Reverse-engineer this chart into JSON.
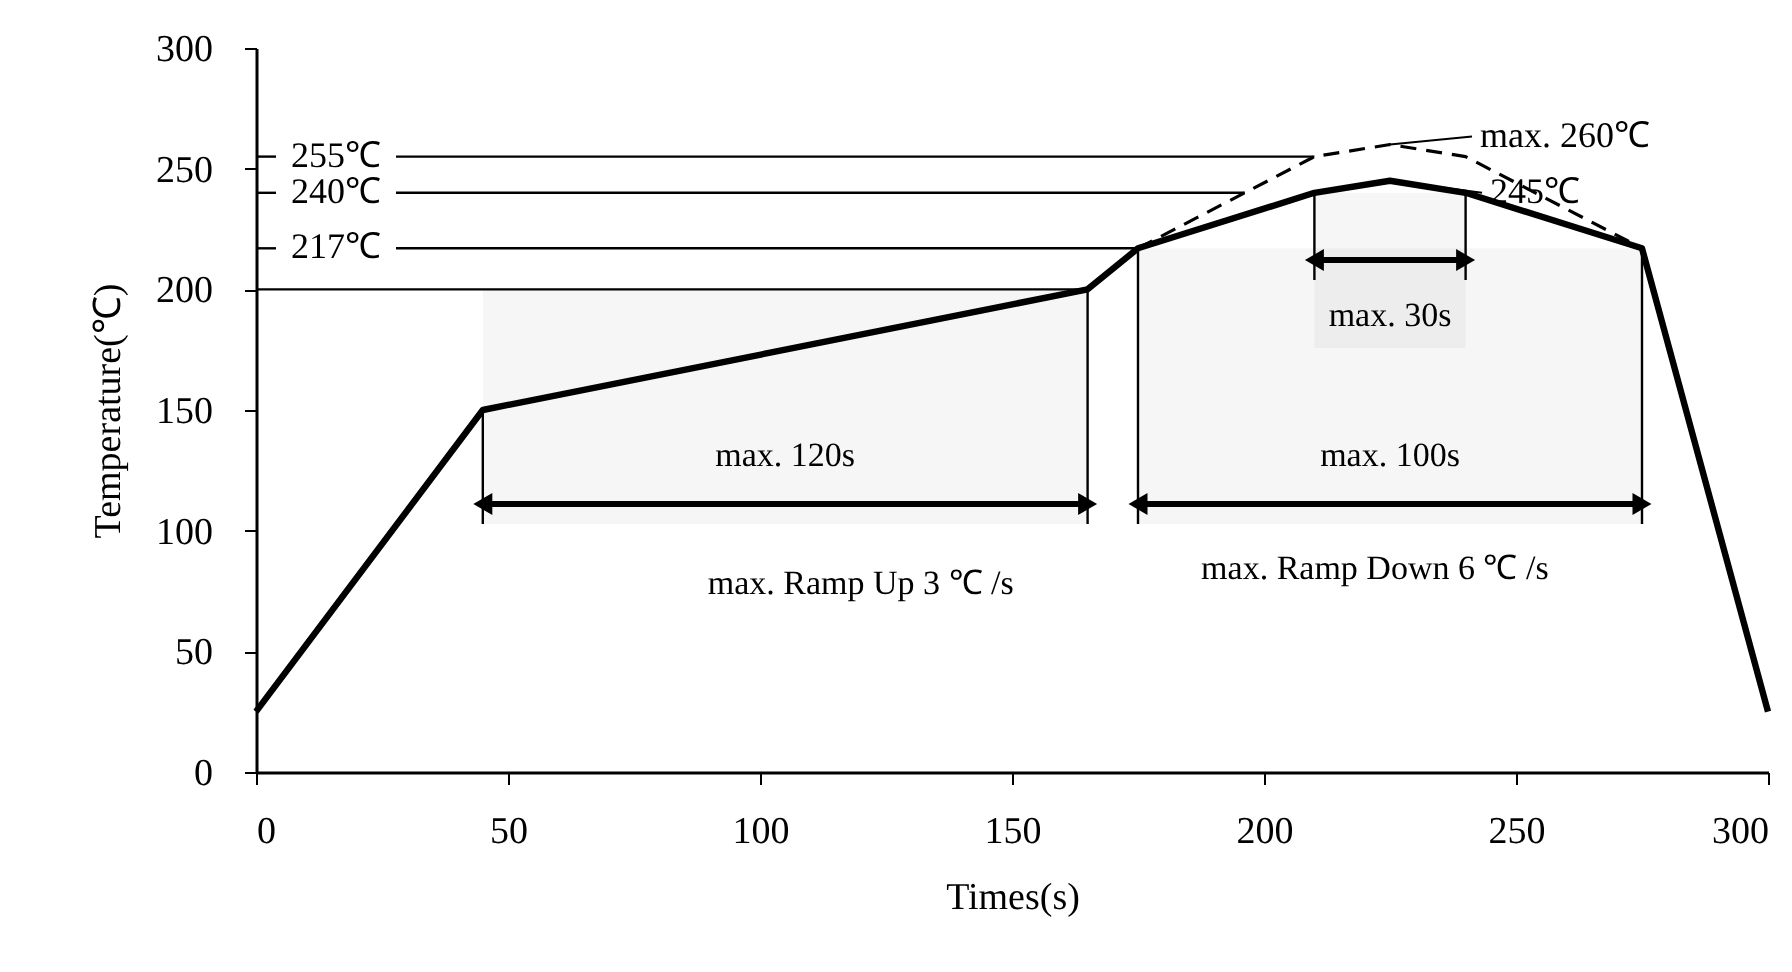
{
  "chart_data": {
    "type": "line",
    "xlabel": "Times(s)",
    "ylabel": "Temperature(℃)",
    "series": [
      {
        "color": "#000000",
        "line_style": "solid",
        "x": [
          0,
          45,
          165,
          175,
          210,
          225,
          240,
          275,
          300
        ],
        "values": [
          25,
          150,
          200,
          217,
          240,
          245,
          240,
          217,
          25
        ]
      },
      {
        "color": "#000000",
        "line_style": "dashed",
        "x": [
          175,
          210,
          225,
          240,
          275
        ],
        "values": [
          217,
          255,
          260,
          255,
          217
        ]
      }
    ],
    "xlim": [
      0,
      300
    ],
    "xticks": [
      0,
      50,
      100,
      150,
      200,
      250,
      300
    ],
    "ylim": [
      0,
      300
    ],
    "yticks": [
      0,
      50,
      100,
      150,
      200,
      250,
      300
    ],
    "ref_lines": [
      {
        "axis": "y",
        "value": 255,
        "label": "255℃"
      },
      {
        "axis": "y",
        "value": 240,
        "label": "240℃"
      },
      {
        "axis": "y",
        "value": 217,
        "label": "217℃"
      },
      {
        "axis": "y",
        "value": 200,
        "label": null
      }
    ],
    "bands": [
      {
        "axis": "x",
        "from": 45,
        "to": 165,
        "label": "max. 120s"
      },
      {
        "axis": "x",
        "from": 175,
        "to": 275,
        "label": "max. 100s"
      },
      {
        "axis": "x",
        "from": 210,
        "to": 240,
        "label": "max. 30s"
      }
    ],
    "annotations": [
      {
        "text": "max. 260℃",
        "x": 225,
        "y": 260
      },
      {
        "text": "245℃",
        "x": 225,
        "y": 245
      },
      "max. Ramp Up 3 ℃ /s",
      "max. Ramp Down 6 ℃ /s"
    ],
    "grid": false,
    "legend": false,
    "marker": "none"
  }
}
